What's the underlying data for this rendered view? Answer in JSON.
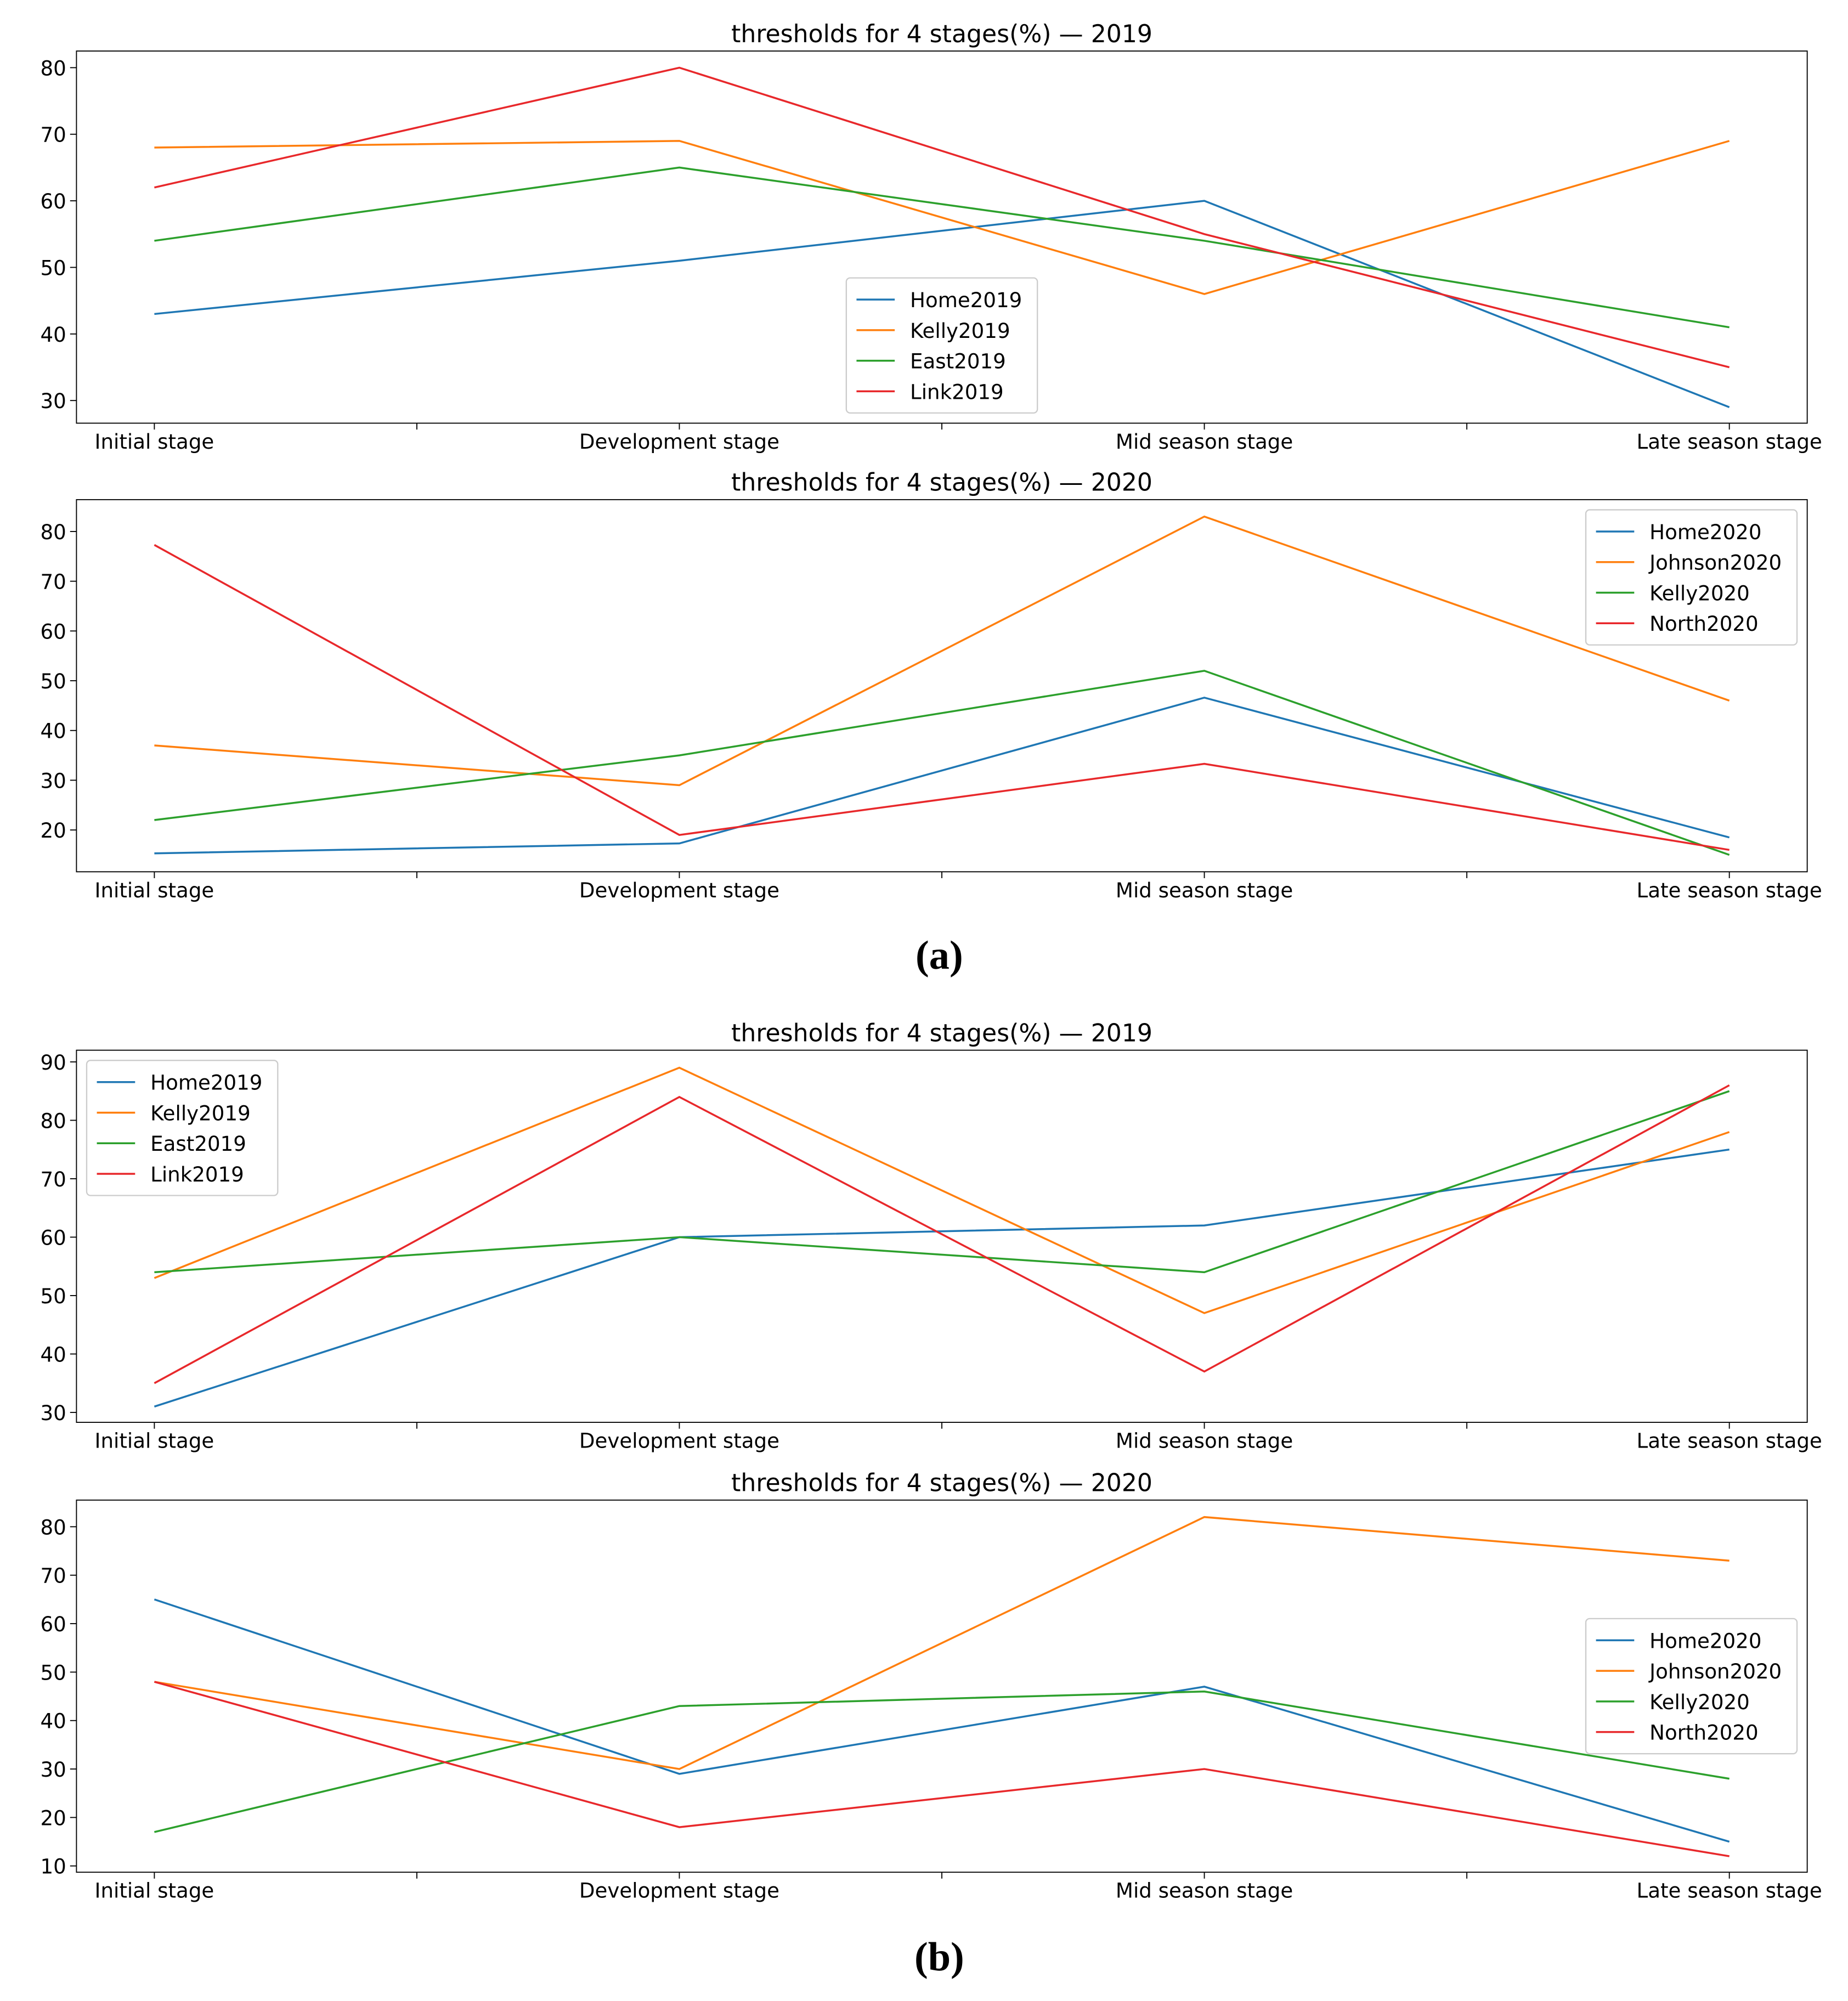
{
  "chart_data": [
    {
      "type": "line",
      "title": "thresholds for 4 stages(%) — 2019",
      "categories": [
        "Initial stage",
        "Development stage",
        "Mid season stage",
        "Late season stage"
      ],
      "ylim": [
        26.6,
        82.5
      ],
      "yticks": [
        30,
        40,
        50,
        60,
        70,
        80
      ],
      "legend": "lower center",
      "series": [
        {
          "name": "Home2019",
          "color": "#1f77b4",
          "values": [
            43,
            51,
            60,
            29
          ]
        },
        {
          "name": "Kelly2019",
          "color": "#ff7f0e",
          "values": [
            68,
            69,
            46,
            69
          ]
        },
        {
          "name": "East2019",
          "color": "#2ca02c",
          "values": [
            54,
            65,
            54,
            41
          ]
        },
        {
          "name": "Link2019",
          "color": "#e8282b",
          "values": [
            62,
            80,
            55,
            35
          ]
        }
      ]
    },
    {
      "type": "line",
      "title": "thresholds for 4 stages(%) — 2020",
      "categories": [
        "Initial stage",
        "Development stage",
        "Mid season stage",
        "Late season stage"
      ],
      "ylim": [
        11.6,
        86.4
      ],
      "yticks": [
        20,
        30,
        40,
        50,
        60,
        70,
        80
      ],
      "legend": "upper right",
      "series": [
        {
          "name": "Home2020",
          "color": "#1f77b4",
          "values": [
            15.3,
            17.3,
            46.6,
            18.5
          ]
        },
        {
          "name": "Johnson2020",
          "color": "#ff7f0e",
          "values": [
            37,
            29,
            83,
            46
          ]
        },
        {
          "name": "Kelly2020",
          "color": "#2ca02c",
          "values": [
            22,
            35,
            52,
            15
          ]
        },
        {
          "name": "North2020",
          "color": "#e8282b",
          "values": [
            77.3,
            19,
            33.3,
            16
          ]
        }
      ]
    },
    {
      "type": "line",
      "title": "thresholds for 4 stages(%) — 2019",
      "categories": [
        "Initial stage",
        "Development stage",
        "Mid season stage",
        "Late season stage"
      ],
      "ylim": [
        28.3,
        92
      ],
      "yticks": [
        30,
        40,
        50,
        60,
        70,
        80,
        90
      ],
      "legend": "upper left",
      "series": [
        {
          "name": "Home2019",
          "color": "#1f77b4",
          "values": [
            31,
            60,
            62,
            75
          ]
        },
        {
          "name": "Kelly2019",
          "color": "#ff7f0e",
          "values": [
            53,
            89,
            47,
            78
          ]
        },
        {
          "name": "East2019",
          "color": "#2ca02c",
          "values": [
            54,
            60,
            54,
            85
          ]
        },
        {
          "name": "Link2019",
          "color": "#e8282b",
          "values": [
            35,
            84,
            37,
            86
          ]
        }
      ]
    },
    {
      "type": "line",
      "title": "thresholds for 4 stages(%) — 2020",
      "categories": [
        "Initial stage",
        "Development stage",
        "Mid season stage",
        "Late season stage"
      ],
      "ylim": [
        8.7,
        85.5
      ],
      "yticks": [
        10,
        20,
        30,
        40,
        50,
        60,
        70,
        80
      ],
      "legend": "center right",
      "series": [
        {
          "name": "Home2020",
          "color": "#1f77b4",
          "values": [
            65,
            29,
            47,
            15
          ]
        },
        {
          "name": "Johnson2020",
          "color": "#ff7f0e",
          "values": [
            48,
            30,
            82,
            73
          ]
        },
        {
          "name": "Kelly2020",
          "color": "#2ca02c",
          "values": [
            17,
            43,
            46,
            28
          ]
        },
        {
          "name": "North2020",
          "color": "#e8282b",
          "values": [
            48,
            18,
            30,
            12
          ]
        }
      ]
    }
  ],
  "captions": [
    "(a)",
    "(b)"
  ]
}
